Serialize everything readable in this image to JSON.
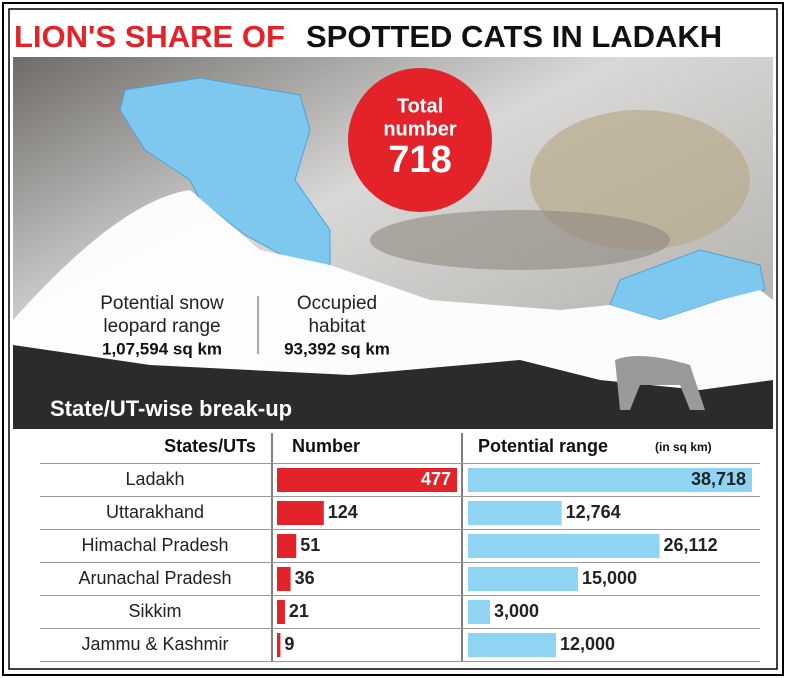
{
  "title_red": "LION'S SHARE OF",
  "title_black": "SPOTTED CATS IN LADAKH",
  "total": {
    "label": [
      "Total",
      "number"
    ],
    "value": 718
  },
  "range": {
    "label": [
      "Potential snow",
      "leopard range"
    ],
    "value": "1,07,594 sq km"
  },
  "habitat": {
    "label": [
      "Occupied",
      "habitat"
    ],
    "value": "93,392 sq km"
  },
  "section_title": "State/UT-wise break-up",
  "chart_data": {
    "type": "bar",
    "categories_header": "States/UTs",
    "categories": [
      "Ladakh",
      "Uttarakhand",
      "Himachal Pradesh",
      "Arunachal Pradesh",
      "Sikkim",
      "Jammu & Kashmir"
    ],
    "series": [
      {
        "name": "Number",
        "color": "#e3222a",
        "values": [
          477,
          124,
          51,
          36,
          21,
          9
        ]
      },
      {
        "name": "Potential range",
        "unit": "(in sq km)",
        "color": "#8fd4f2",
        "values": [
          38718,
          12764,
          26112,
          15000,
          3000,
          12000
        ],
        "value_labels": [
          "38,718",
          "12,764",
          "26,112",
          "15,000",
          "3,000",
          "12,000"
        ]
      }
    ]
  }
}
